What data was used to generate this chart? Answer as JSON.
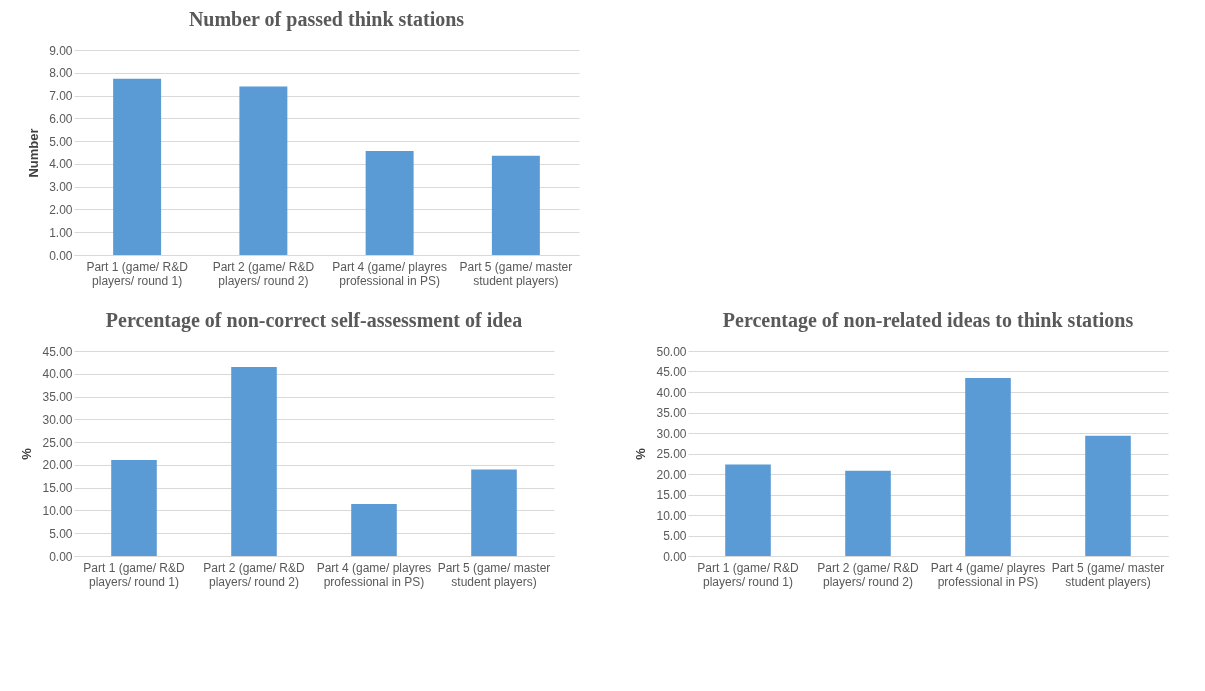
{
  "chart_data": [
    {
      "type": "bar",
      "title": "Number of passed think stations",
      "ylabel": "Number",
      "categories": [
        "Part 1 (game/ R&D players/ round 1)",
        "Part 2 (game/ R&D players/ round 2)",
        "Part 4 (game/ playres professional in PS)",
        "Part 5 (game/ master student players)"
      ],
      "values": [
        7.74,
        7.4,
        4.57,
        4.36
      ],
      "color": "#5b9bd5",
      "ylim": [
        0,
        9
      ],
      "yticks": [
        {
          "value": 0,
          "label": "0.00"
        },
        {
          "value": 1,
          "label": "1.00"
        },
        {
          "value": 2,
          "label": "2.00"
        },
        {
          "value": 3,
          "label": "3.00"
        },
        {
          "value": 4,
          "label": "4.00"
        },
        {
          "value": 5,
          "label": "5.00"
        },
        {
          "value": 6,
          "label": "6.00"
        },
        {
          "value": 7,
          "label": "7.00"
        },
        {
          "value": 8,
          "label": "8.00"
        },
        {
          "value": 9,
          "label": "9.00"
        }
      ],
      "grid": "y"
    },
    {
      "type": "bar",
      "title": "Percentage of non-correct self-assessment of idea",
      "ylabel": "%",
      "categories": [
        "Part 1 (game/ R&D players/ round 1)",
        "Part 2 (game/ R&D players/ round 2)",
        "Part 4 (game/ playres professional in PS)",
        "Part 5 (game/ master student players)"
      ],
      "values": [
        21.1,
        41.5,
        11.4,
        19.0
      ],
      "color": "#5b9bd5",
      "ylim": [
        0,
        45
      ],
      "yticks": [
        {
          "value": 0,
          "label": "0.00"
        },
        {
          "value": 5,
          "label": "5.00"
        },
        {
          "value": 10,
          "label": "10.00"
        },
        {
          "value": 15,
          "label": "15.00"
        },
        {
          "value": 20,
          "label": "20.00"
        },
        {
          "value": 25,
          "label": "25.00"
        },
        {
          "value": 30,
          "label": "30.00"
        },
        {
          "value": 35,
          "label": "35.00"
        },
        {
          "value": 40,
          "label": "40.00"
        },
        {
          "value": 45,
          "label": "45.00"
        }
      ],
      "grid": "y"
    },
    {
      "type": "bar",
      "title": "Percentage of non-related ideas to think stations",
      "ylabel": "%",
      "categories": [
        "Part 1 (game/ R&D players/ round 1)",
        "Part 2 (game/ R&D players/ round 2)",
        "Part 4 (game/ playres professional in PS)",
        "Part 5 (game/ master student players)"
      ],
      "values": [
        22.3,
        20.8,
        43.4,
        29.3
      ],
      "color": "#5b9bd5",
      "ylim": [
        0,
        50
      ],
      "yticks": [
        {
          "value": 0,
          "label": "0.00"
        },
        {
          "value": 5,
          "label": "5.00"
        },
        {
          "value": 10,
          "label": "10.00"
        },
        {
          "value": 15,
          "label": "15.00"
        },
        {
          "value": 20,
          "label": "20.00"
        },
        {
          "value": 25,
          "label": "25.00"
        },
        {
          "value": 30,
          "label": "30.00"
        },
        {
          "value": 35,
          "label": "35.00"
        },
        {
          "value": 40,
          "label": "40.00"
        },
        {
          "value": 45,
          "label": "45.00"
        },
        {
          "value": 50,
          "label": "50.00"
        }
      ],
      "grid": "y"
    }
  ]
}
